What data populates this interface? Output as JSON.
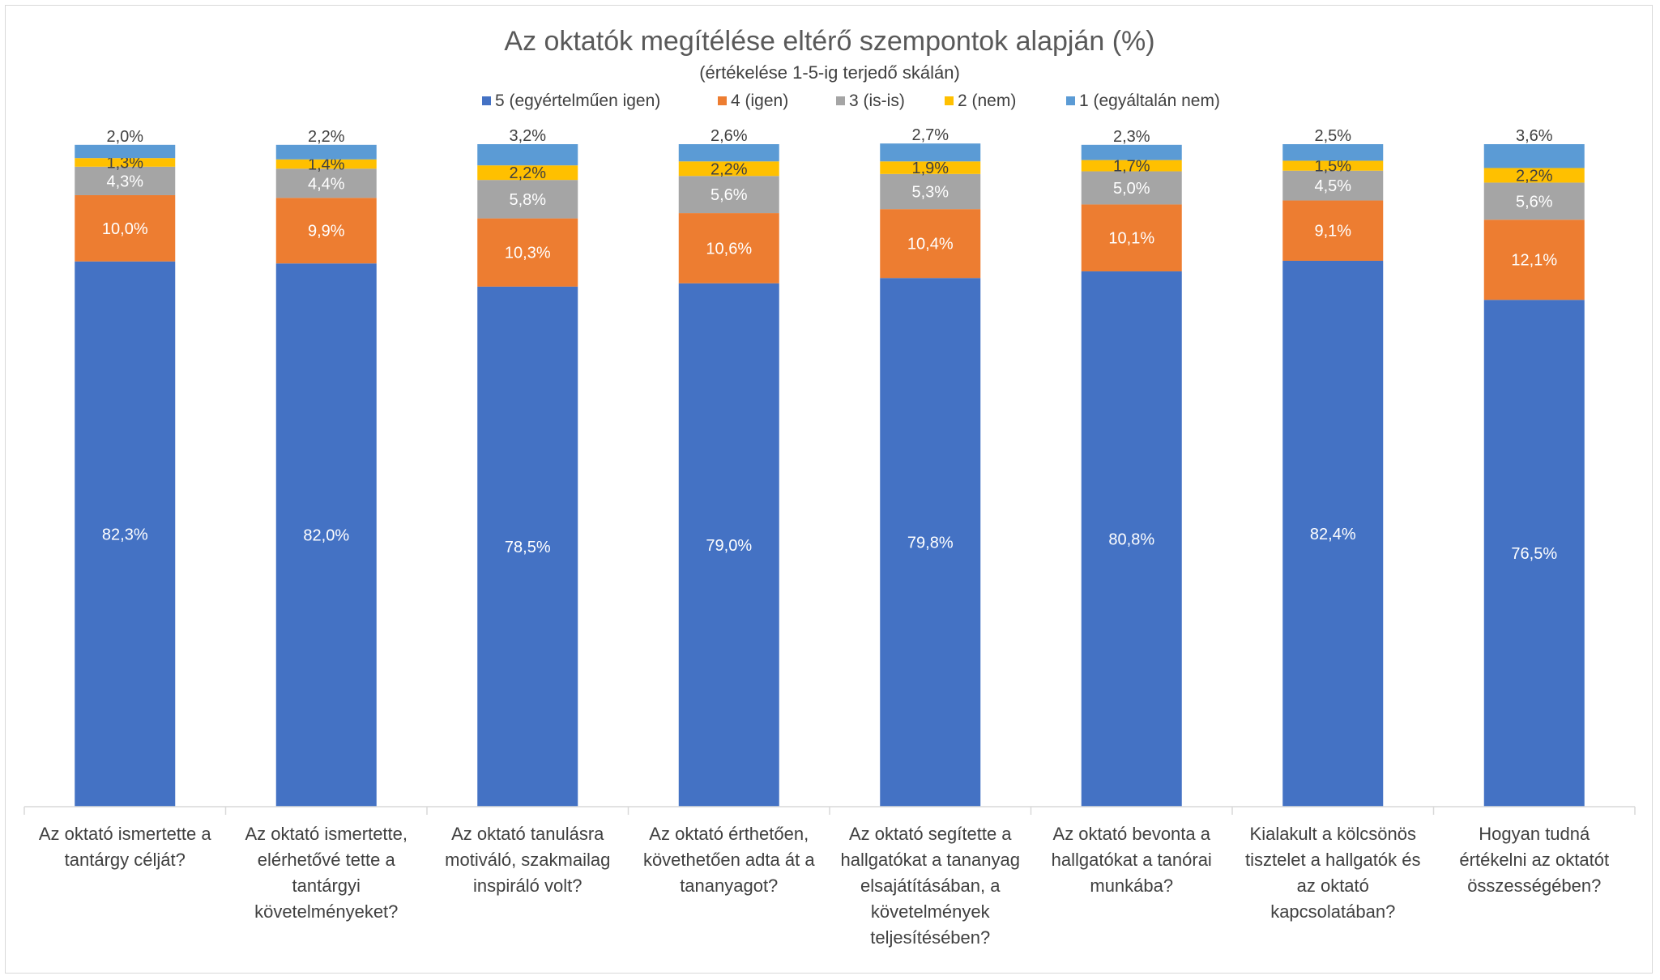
{
  "chart_data": {
    "type": "bar",
    "stacked": true,
    "title": "Az oktatók megítélése eltérő szempontok alapján (%)",
    "subtitle": "(értékelése 1-5-ig terjedő skálán)",
    "legend_position": "top",
    "grid": false,
    "ylim": [
      0,
      100
    ],
    "categories": [
      [
        "Az oktató ismertette a",
        "tantárgy célját?"
      ],
      [
        "Az oktató ismertette,",
        "elérhetővé tette a",
        "tantárgyi",
        "követelményeket?"
      ],
      [
        "Az oktató tanulásra",
        "motiváló, szakmailag",
        "inspiráló volt?"
      ],
      [
        "Az oktató érthetően,",
        "követhetően adta át a",
        "tananyagot?"
      ],
      [
        "Az oktató segítette a",
        "hallgatókat a tananyag",
        "elsajátításában, a",
        "követelmények",
        "teljesítésében?"
      ],
      [
        "Az oktató bevonta a",
        "hallgatókat a tanórai",
        "munkába?"
      ],
      [
        "Kialakult a kölcsönös",
        "tisztelet a hallgatók és",
        "az oktató",
        "kapcsolatában?"
      ],
      [
        "Hogyan tudná",
        "értékelni az oktatót",
        "összességében?"
      ]
    ],
    "series": [
      {
        "name": "5 (egyértelműen igen)",
        "color": "#4472C4",
        "label_color": "#ffffff",
        "values": [
          82.3,
          82.0,
          78.5,
          79.0,
          79.8,
          80.8,
          82.4,
          76.5
        ],
        "labels": [
          "82,3%",
          "82,0%",
          "78,5%",
          "79,0%",
          "79,8%",
          "80,8%",
          "82,4%",
          "76,5%"
        ]
      },
      {
        "name": "4 (igen)",
        "color": "#ED7D31",
        "label_color": "#ffffff",
        "values": [
          10.0,
          9.9,
          10.3,
          10.6,
          10.4,
          10.1,
          9.1,
          12.1
        ],
        "labels": [
          "10,0%",
          "9,9%",
          "10,3%",
          "10,6%",
          "10,4%",
          "10,1%",
          "9,1%",
          "12,1%"
        ]
      },
      {
        "name": "3 (is-is)",
        "color": "#A5A5A5",
        "label_color": "#ffffff",
        "values": [
          4.3,
          4.4,
          5.8,
          5.6,
          5.3,
          5.0,
          4.5,
          5.6
        ],
        "labels": [
          "4,3%",
          "4,4%",
          "5,8%",
          "5,6%",
          "5,3%",
          "5,0%",
          "4,5%",
          "5,6%"
        ]
      },
      {
        "name": "2 (nem)",
        "color": "#FFC000",
        "label_color": "#404040",
        "values": [
          1.3,
          1.4,
          2.2,
          2.2,
          1.9,
          1.7,
          1.5,
          2.2
        ],
        "labels": [
          "1,3%",
          "1,4%",
          "2,2%",
          "2,2%",
          "1,9%",
          "1,7%",
          "1,5%",
          "2,2%"
        ]
      },
      {
        "name": "1 (egyáltalán nem)",
        "color": "#5B9BD5",
        "label_color": "#404040",
        "values": [
          2.0,
          2.2,
          3.2,
          2.6,
          2.7,
          2.3,
          2.5,
          3.6
        ],
        "labels": [
          "2,0%",
          "2,2%",
          "3,2%",
          "2,6%",
          "2,7%",
          "2,3%",
          "2,5%",
          "3,6%"
        ]
      }
    ]
  }
}
